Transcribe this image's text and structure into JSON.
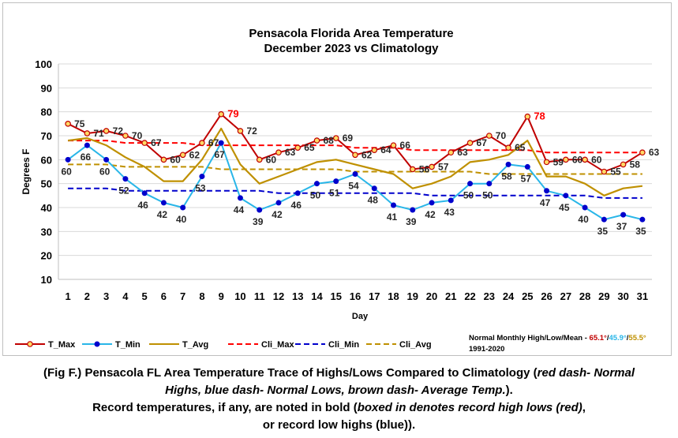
{
  "chart_data": {
    "type": "line",
    "title": "Pensacola Florida Area Temperature",
    "subtitle": "December 2023 vs Climatology",
    "xlabel": "Day",
    "ylabel": "Degrees F",
    "ylim": [
      10,
      100
    ],
    "yticks": [
      10,
      20,
      30,
      40,
      50,
      60,
      70,
      80,
      90,
      100
    ],
    "x": [
      1,
      2,
      3,
      4,
      5,
      6,
      7,
      8,
      9,
      10,
      11,
      12,
      13,
      14,
      15,
      16,
      17,
      18,
      19,
      20,
      21,
      22,
      23,
      24,
      25,
      26,
      27,
      28,
      29,
      30,
      31
    ],
    "grid": true,
    "legend_position": "bottom",
    "series": [
      {
        "name": "T_Max",
        "color": "#c00000",
        "style": "solid-markers",
        "values": [
          75,
          71,
          72,
          70,
          67,
          60,
          62,
          67,
          79,
          72,
          60,
          63,
          65,
          68,
          69,
          62,
          64,
          66,
          56,
          57,
          63,
          67,
          70,
          65,
          78,
          59,
          60,
          60,
          55,
          58,
          63
        ],
        "record_days": [
          9,
          25
        ]
      },
      {
        "name": "T_Min",
        "color": "#29b6e8",
        "style": "solid-markers",
        "values": [
          60,
          66,
          60,
          52,
          46,
          42,
          40,
          53,
          67,
          44,
          39,
          42,
          46,
          50,
          51,
          54,
          48,
          41,
          39,
          42,
          43,
          50,
          50,
          58,
          57,
          47,
          45,
          40,
          35,
          37,
          35
        ]
      },
      {
        "name": "T_Avg",
        "color": "#bf9000",
        "style": "solid",
        "values": [
          68,
          69,
          66,
          61,
          57,
          51,
          51,
          60,
          73,
          58,
          50,
          53,
          56,
          59,
          60,
          58,
          56,
          54,
          48,
          50,
          53,
          59,
          60,
          62,
          68,
          53,
          53,
          50,
          45,
          48,
          49
        ]
      },
      {
        "name": "Cli_Max",
        "color": "#ff0000",
        "style": "dash",
        "values": [
          68,
          68,
          68,
          67,
          67,
          67,
          67,
          66,
          66,
          66,
          66,
          66,
          66,
          66,
          66,
          65,
          65,
          65,
          64,
          64,
          64,
          64,
          64,
          64,
          64,
          63,
          63,
          63,
          63,
          63,
          63
        ]
      },
      {
        "name": "Cli_Min",
        "color": "#0000cc",
        "style": "dash",
        "values": [
          48,
          48,
          48,
          47,
          47,
          47,
          47,
          47,
          47,
          47,
          47,
          46,
          46,
          46,
          46,
          46,
          46,
          46,
          46,
          45,
          45,
          45,
          45,
          45,
          45,
          45,
          45,
          45,
          44,
          44,
          44
        ]
      },
      {
        "name": "Cli_Avg",
        "color": "#bf9000",
        "style": "dash",
        "values": [
          58,
          58,
          58,
          57,
          57,
          57,
          57,
          57,
          56,
          56,
          56,
          56,
          56,
          56,
          56,
          55,
          55,
          55,
          55,
          55,
          55,
          55,
          54,
          54,
          54,
          54,
          54,
          54,
          54,
          54,
          54
        ]
      }
    ],
    "normals_note": {
      "prefix": "Normal Monthly High/Low/Mean - ",
      "high": "65.1°",
      "low": "45.9°",
      "mean": "55.5°",
      "period": "1991-2020",
      "high_color": "#c00000",
      "low_color": "#29b6e8",
      "mean_color": "#bf9000"
    }
  },
  "caption": {
    "line1_a": "(Fig F.) Pensacola FL Area Temperature Trace of Highs/Lows Compared to Climatology (",
    "line1_b": "red dash- Normal",
    "line2_a": "Highs, blue dash- Normal Lows, brown dash- Average Temp.",
    "line2_b": ").",
    "line3_a": "Record temperatures, if any, are noted in bold (",
    "line3_b": "boxed in denotes record high lows (red)",
    "line3_c": ",",
    "line4_a": "or record low highs (blue)).",
    "line4_b": ""
  }
}
